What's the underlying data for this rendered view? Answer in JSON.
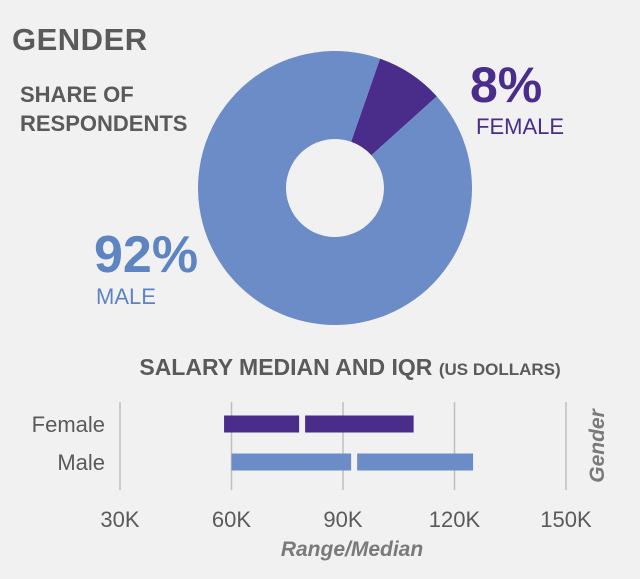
{
  "chart_data": [
    {
      "type": "pie",
      "title": "GENDER",
      "subtitle": [
        "SHARE OF",
        "RESPONDENTS"
      ],
      "donut": true,
      "slices": [
        {
          "name": "MALE",
          "value": 92,
          "label": "92%",
          "color": "#6b8cc7"
        },
        {
          "name": "FEMALE",
          "value": 8,
          "label": "8%",
          "color": "#4a2c8a"
        }
      ]
    },
    {
      "type": "bar",
      "orientation": "horizontal-range",
      "title": "SALARY MEDIAN AND IQR",
      "title_unit": "(US DOLLARS)",
      "xlabel": "Range/Median",
      "ylabel": "Gender",
      "xlim": [
        30000,
        150000
      ],
      "ticks": [
        30000,
        60000,
        90000,
        120000,
        150000
      ],
      "tick_labels": [
        "30K",
        "60K",
        "90K",
        "120K",
        "150K"
      ],
      "grid": true,
      "series": [
        {
          "name": "Female",
          "q1": 58000,
          "median": 79000,
          "q3": 109000,
          "color": "#4a2c8a"
        },
        {
          "name": "Male",
          "q1": 60000,
          "median": 93000,
          "q3": 125000,
          "color": "#6b8cc7"
        }
      ]
    }
  ]
}
